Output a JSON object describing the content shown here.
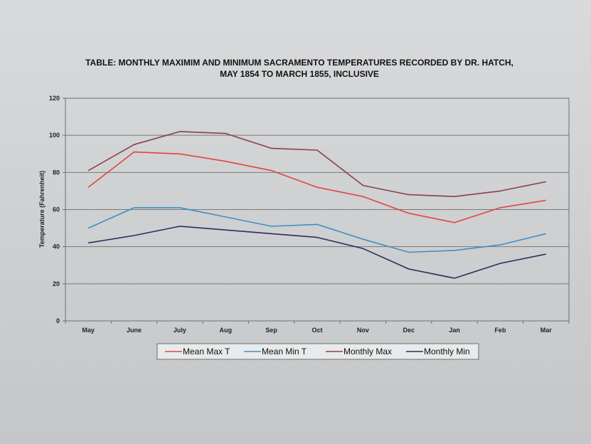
{
  "chart_data": {
    "type": "line",
    "title_lines": [
      "TABLE: MONTHLY MAXIMIM AND MINIMUM SACRAMENTO TEMPERATURES RECORDED BY DR. HATCH,",
      "MAY 1854 TO MARCH 1855, INCLUSIVE"
    ],
    "xlabel": "",
    "ylabel": "Temperature (Fahrenheit)",
    "categories": [
      "May",
      "June",
      "July",
      "Aug",
      "Sep",
      "Oct",
      "Nov",
      "Dec",
      "Jan",
      "Feb",
      "Mar"
    ],
    "ylim": [
      0,
      120
    ],
    "yticks": [
      0,
      20,
      40,
      60,
      80,
      100,
      120
    ],
    "grid": true,
    "legend_position": "bottom",
    "series": [
      {
        "name": "Mean Max T",
        "color": "#e0463f",
        "values": [
          72,
          91,
          90,
          86,
          81,
          72,
          67,
          58,
          53,
          61,
          65
        ]
      },
      {
        "name": "Mean Min T",
        "color": "#3f8fc4",
        "values": [
          50,
          61,
          61,
          56,
          51,
          52,
          44,
          37,
          38,
          41,
          47
        ]
      },
      {
        "name": "Monthly Max",
        "color": "#8a3f48",
        "values": [
          81,
          95,
          102,
          101,
          93,
          92,
          73,
          68,
          67,
          70,
          75
        ]
      },
      {
        "name": "Monthly Min",
        "color": "#2f2c5c",
        "values": [
          42,
          46,
          51,
          49,
          47,
          45,
          39,
          28,
          23,
          31,
          36
        ]
      }
    ]
  }
}
